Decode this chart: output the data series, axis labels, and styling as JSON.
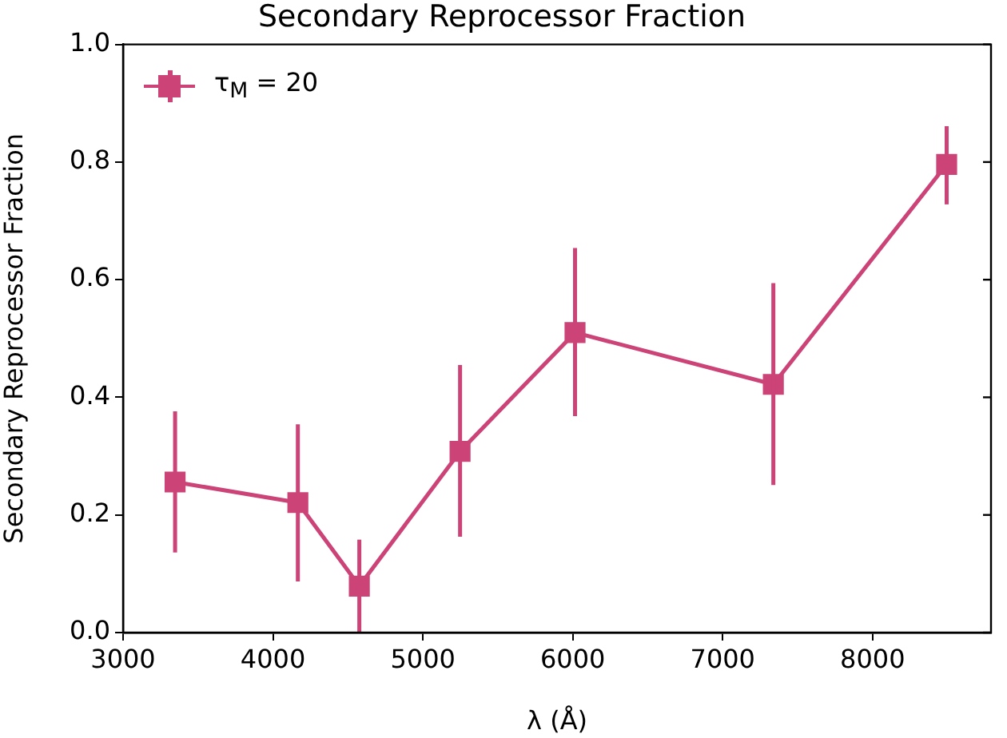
{
  "chart_data": {
    "type": "line",
    "title": "Secondary Reprocessor Fraction",
    "xlabel": "λ (Å)",
    "ylabel": "Secondary Reprocessor Fraction",
    "x": [
      3347,
      4166,
      4576,
      5248,
      6015,
      7338,
      8494
    ],
    "series": [
      {
        "name": "τ$_{M}$ = 20",
        "color": "#cc4477",
        "values": [
          0.256,
          0.221,
          0.079,
          0.308,
          0.51,
          0.422,
          0.796
        ],
        "errors": [
          [
            0.136,
            0.376
          ],
          [
            0.087,
            0.354
          ],
          [
            0.0,
            0.158
          ],
          [
            0.163,
            0.455
          ],
          [
            0.368,
            0.654
          ],
          [
            0.251,
            0.594
          ],
          [
            0.728,
            0.861
          ]
        ]
      }
    ],
    "xlim": [
      3000,
      8790
    ],
    "xticks": [
      3000,
      4000,
      5000,
      6000,
      7000,
      8000
    ],
    "ylim": [
      0,
      1
    ],
    "yticks": [
      {
        "value": 0,
        "label": "0.0"
      },
      {
        "value": 0.2,
        "label": "0.2"
      },
      {
        "value": 0.4,
        "label": "0.4"
      },
      {
        "value": 0.6,
        "label": "0.6"
      },
      {
        "value": 0.8,
        "label": "0.8"
      },
      {
        "value": 1,
        "label": "1.0"
      }
    ],
    "grid": false,
    "legend": "top left",
    "marker": "square",
    "line_style": "solid"
  }
}
